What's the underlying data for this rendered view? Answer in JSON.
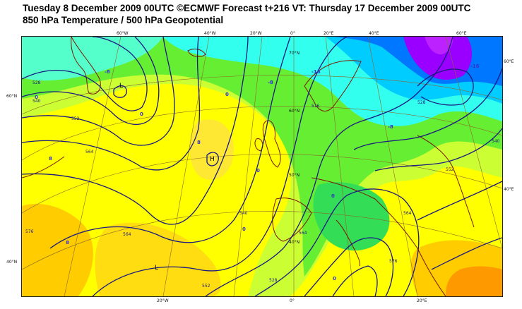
{
  "title_line1": "Tuesday 8 December 2009 00UTC ©ECMWF Forecast t+216 VT: Thursday 17 December 2009 00UTC",
  "title_line2": "850 hPa Temperature / 500 hPa Geopotential",
  "colors": {
    "warm_yellow": "#ffff00",
    "light_yellow": "#ffee33",
    "orange": "#ffcc00",
    "dark_orange": "#ff9900",
    "yellow_green": "#ccff33",
    "green": "#66ee33",
    "bright_green": "#33dd55",
    "cyan": "#33ffee",
    "light_blue": "#00ccff",
    "blue": "#0077ff",
    "purple": "#9900ff",
    "contour": "#1a1a80",
    "coast": "#7a1a00",
    "grid": "#8a6a2a"
  },
  "top_lon_labels": [
    "60°W",
    "40°W",
    "20°W",
    "0°",
    "20°E",
    "40°E",
    "60°E"
  ],
  "bottom_lon_labels": [
    "20°W",
    "0°",
    "20°E"
  ],
  "left_lat_labels": [
    "60°N",
    "40°N"
  ],
  "right_lat_labels": [
    "60°E",
    "40°E"
  ],
  "inner_lat_labels": [
    "70°N",
    "60°N",
    "50°N",
    "40°N"
  ],
  "pressure_centers": [
    "L",
    "H",
    "L"
  ],
  "contour_labels": [
    "528",
    "540",
    "552",
    "564",
    "576",
    "564",
    "552",
    "540",
    "528",
    "564",
    "576",
    "564",
    "552",
    "540",
    "528",
    "516"
  ],
  "temp_labels": [
    "-8",
    "0",
    "0",
    "8",
    "0",
    "0",
    "8",
    "0",
    "-8",
    "-16",
    "0",
    "-8",
    "0",
    "8",
    "-16"
  ]
}
